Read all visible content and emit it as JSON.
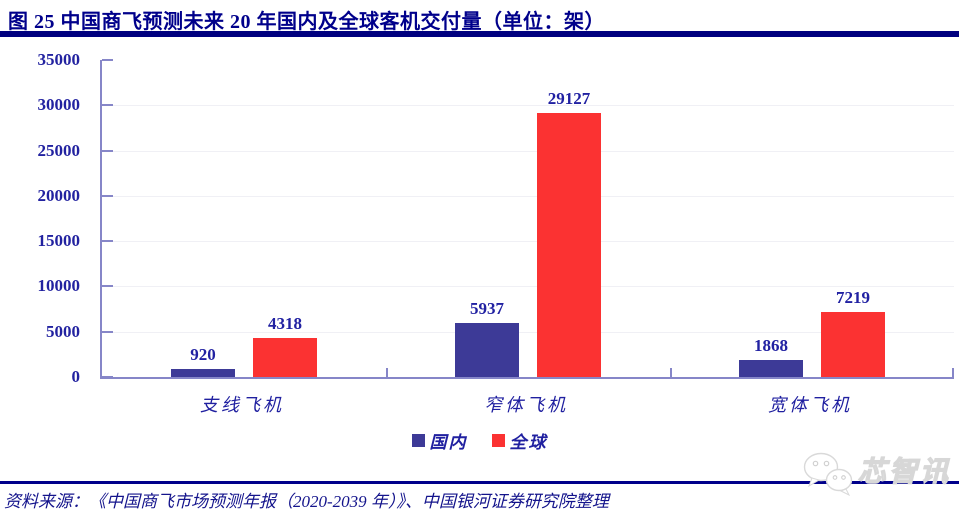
{
  "title": "图 25 中国商飞预测未来 20 年国内及全球客机交付量（单位：架）",
  "chart_data": {
    "type": "bar",
    "title": "中国商飞预测未来 20 年国内及全球客机交付量",
    "unit": "架",
    "categories": [
      "支线飞机",
      "窄体飞机",
      "宽体飞机"
    ],
    "series": [
      {
        "name": "国内",
        "color": "#3D3A97",
        "values": [
          920,
          5937,
          1868
        ]
      },
      {
        "name": "全球",
        "color": "#FB3232",
        "values": [
          4318,
          29127,
          7219
        ]
      }
    ],
    "ylim": [
      0,
      35000
    ],
    "yticks": [
      0,
      5000,
      10000,
      15000,
      20000,
      25000,
      30000,
      35000
    ],
    "xlabel": "",
    "ylabel": "",
    "grid": "faint-horizontal",
    "legend_position": "bottom",
    "data_labels": true
  },
  "source_note": "资料来源：《中国商飞市场预测年报（2020-2039 年）》、中国银河证券研究院整理",
  "watermark": {
    "text": "芯智讯",
    "icon": "wechat-bubbles-icon"
  },
  "colors": {
    "title": "#00008B",
    "divider": "#00007F",
    "axis": "#8686C8",
    "tick_label": "#2222A0",
    "domestic_bar": "#3D3A97",
    "global_bar": "#FB3232"
  }
}
